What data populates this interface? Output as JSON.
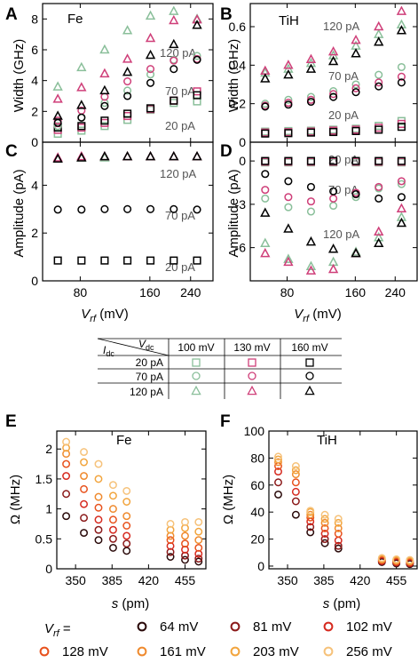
{
  "colors": {
    "c20": "#000000",
    "c70": "#000000",
    "c120": "#000000",
    "v100": "#8abf9a",
    "v130": "#cf3f79",
    "v160": "#000000",
    "axis": "#000000",
    "gray_label": "#555555",
    "vrf": [
      "#2a0a0a",
      "#8b1a1a",
      "#d62a1f",
      "#e8521d",
      "#ef8a2e",
      "#f2a53e",
      "#f6c27a"
    ]
  },
  "labels": {
    "panelA": "A",
    "panelB": "B",
    "panelC": "C",
    "panelD": "D",
    "panelE": "E",
    "panelF": "F",
    "fe": "Fe",
    "tih": "TiH",
    "width_ylabel": "Width (GHz)",
    "amp_ylabel": "Amplitude (pA)",
    "omega_ylabel": "Ω (MHz)",
    "vrf_xlabel_main": "V",
    "vrf_xlabel_sub": "rf",
    "vrf_xlabel_unit": " (mV)",
    "s_xlabel_main": "s",
    "s_xlabel_unit": " (pm)",
    "lbl_120pA": "120 pA",
    "lbl_70pA": "70 pA",
    "lbl_20pA": "20 pA",
    "vrf_legend_main": "V",
    "vrf_legend_sub": "rf",
    "vrf_legend_eq": " ="
  },
  "legend_table": {
    "idc_main": "I",
    "idc_sub": "dc",
    "vdc_main": "V",
    "vdc_sub": "dc",
    "columns": [
      "100 mV",
      "130 mV",
      "160 mV"
    ],
    "rows": [
      "20 pA",
      "70 pA",
      "120 pA"
    ]
  },
  "vrf_legend": [
    "64 mV",
    "81 mV",
    "102 mV",
    "128 mV",
    "161 mV",
    "203 mV",
    "256 mV"
  ],
  "chart_data": [
    {
      "panel": "A",
      "type": "scatter",
      "title": "Fe",
      "ylabel": "Width (GHz)",
      "xlabel": "Vrf (mV)",
      "x_scale": "log",
      "xticks": [
        80,
        160,
        240
      ],
      "ylim": [
        0,
        9
      ],
      "yticks": [
        0,
        2,
        4,
        6,
        8
      ],
      "x": [
        64,
        81,
        102,
        128,
        161,
        203,
        256
      ],
      "series": [
        {
          "name": "20 pA, 100 mV",
          "marker": "square",
          "color": "#8abf9a",
          "values": [
            0.55,
            0.75,
            1.05,
            1.45,
            2.1,
            2.55,
            2.65
          ]
        },
        {
          "name": "20 pA, 130 mV",
          "marker": "square",
          "color": "#cf3f79",
          "values": [
            0.8,
            0.95,
            1.25,
            1.7,
            2.15,
            2.7,
            3.3
          ]
        },
        {
          "name": "20 pA, 160 mV",
          "marker": "square",
          "color": "#000000",
          "values": [
            0.95,
            1.05,
            1.4,
            1.85,
            2.2,
            2.7,
            3.05
          ]
        },
        {
          "name": "70 pA, 100 mV",
          "marker": "circle",
          "color": "#8abf9a",
          "values": [
            1.05,
            1.6,
            2.55,
            3.35,
            4.4,
            5.35,
            5.6
          ]
        },
        {
          "name": "70 pA, 130 mV",
          "marker": "circle",
          "color": "#cf3f79",
          "values": [
            1.4,
            2.05,
            2.95,
            3.95,
            4.75,
            5.3,
            5.4
          ]
        },
        {
          "name": "70 pA, 160 mV",
          "marker": "circle",
          "color": "#000000",
          "values": [
            1.25,
            1.6,
            2.35,
            3.0,
            3.85,
            4.75,
            5.35
          ]
        },
        {
          "name": "120 pA, 100 mV",
          "marker": "triangle",
          "color": "#8abf9a",
          "values": [
            3.6,
            4.85,
            6.0,
            7.25,
            8.2,
            8.5,
            8.0
          ]
        },
        {
          "name": "120 pA, 130 mV",
          "marker": "triangle",
          "color": "#cf3f79",
          "values": [
            2.8,
            3.55,
            4.45,
            5.4,
            6.75,
            7.9,
            7.95
          ]
        },
        {
          "name": "120 pA, 160 mV",
          "marker": "triangle",
          "color": "#000000",
          "values": [
            1.7,
            2.4,
            3.35,
            4.55,
            5.65,
            6.35,
            7.6
          ]
        }
      ]
    },
    {
      "panel": "B",
      "type": "scatter",
      "title": "TiH",
      "ylabel": "Width (GHz)",
      "xlabel": "Vrf (mV)",
      "x_scale": "log",
      "xticks": [
        80,
        160,
        240
      ],
      "ylim": [
        0,
        0.72
      ],
      "yticks": [
        0.0,
        0.2,
        0.4,
        0.6
      ],
      "x": [
        64,
        81,
        102,
        128,
        161,
        203,
        256
      ],
      "series": [
        {
          "name": "20 pA, 100 mV",
          "marker": "square",
          "color": "#8abf9a",
          "values": [
            0.055,
            0.058,
            0.06,
            0.065,
            0.07,
            0.085,
            0.11
          ]
        },
        {
          "name": "20 pA, 130 mV",
          "marker": "square",
          "color": "#cf3f79",
          "values": [
            0.05,
            0.052,
            0.055,
            0.06,
            0.065,
            0.075,
            0.095
          ]
        },
        {
          "name": "20 pA, 160 mV",
          "marker": "square",
          "color": "#000000",
          "values": [
            0.045,
            0.047,
            0.05,
            0.053,
            0.058,
            0.065,
            0.08
          ]
        },
        {
          "name": "70 pA, 100 mV",
          "marker": "circle",
          "color": "#8abf9a",
          "values": [
            0.2,
            0.22,
            0.235,
            0.265,
            0.3,
            0.35,
            0.39
          ]
        },
        {
          "name": "70 pA, 130 mV",
          "marker": "circle",
          "color": "#cf3f79",
          "values": [
            0.19,
            0.205,
            0.22,
            0.25,
            0.28,
            0.31,
            0.34
          ]
        },
        {
          "name": "70 pA, 160 mV",
          "marker": "circle",
          "color": "#000000",
          "values": [
            0.185,
            0.195,
            0.21,
            0.235,
            0.26,
            0.29,
            0.31
          ]
        },
        {
          "name": "120 pA, 100 mV",
          "marker": "triangle",
          "color": "#8abf9a",
          "values": [
            0.36,
            0.38,
            0.41,
            0.45,
            0.5,
            0.56,
            0.61
          ]
        },
        {
          "name": "120 pA, 130 mV",
          "marker": "triangle",
          "color": "#cf3f79",
          "values": [
            0.37,
            0.4,
            0.43,
            0.47,
            0.53,
            0.6,
            0.68
          ]
        },
        {
          "name": "120 pA, 160 mV",
          "marker": "triangle",
          "color": "#000000",
          "values": [
            0.33,
            0.35,
            0.38,
            0.42,
            0.46,
            0.52,
            0.58
          ]
        }
      ]
    },
    {
      "panel": "C",
      "type": "scatter",
      "ylabel": "Amplitude (pA)",
      "xlabel": "Vrf (mV)",
      "x_scale": "log",
      "xticks": [
        80,
        160,
        240
      ],
      "ylim": [
        0,
        5.8
      ],
      "yticks": [
        0,
        2,
        4
      ],
      "x": [
        64,
        81,
        102,
        128,
        161,
        203,
        256
      ],
      "series": [
        {
          "name": "20 pA, 160 mV",
          "marker": "square",
          "color": "#000000",
          "values": [
            0.85,
            0.85,
            0.85,
            0.85,
            0.85,
            0.85,
            0.85
          ]
        },
        {
          "name": "70 pA, 160 mV",
          "marker": "circle",
          "color": "#000000",
          "values": [
            2.98,
            2.98,
            3.0,
            3.0,
            3.0,
            3.0,
            2.98
          ]
        },
        {
          "name": "120 pA, 100 mV",
          "marker": "triangle",
          "color": "#8abf9a",
          "values": [
            5.1,
            5.15,
            5.15,
            5.2,
            5.2,
            5.2,
            5.2
          ]
        },
        {
          "name": "120 pA, 130 mV",
          "marker": "triangle",
          "color": "#cf3f79",
          "values": [
            5.15,
            5.2,
            5.2,
            5.2,
            5.2,
            5.2,
            5.2
          ]
        },
        {
          "name": "120 pA, 160 mV",
          "marker": "triangle",
          "color": "#000000",
          "values": [
            5.1,
            5.15,
            5.2,
            5.2,
            5.2,
            5.2,
            5.2
          ]
        }
      ]
    },
    {
      "panel": "D",
      "type": "scatter",
      "ylabel": "Amplitude (pA)",
      "xlabel": "Vrf (mV)",
      "x_scale": "log",
      "xticks": [
        80,
        160,
        240
      ],
      "ylim": [
        -8.3,
        1.3
      ],
      "yticks": [
        0,
        -3,
        -6
      ],
      "x": [
        64,
        81,
        102,
        128,
        161,
        203,
        256
      ],
      "series": [
        {
          "name": "20 pA, 100 mV",
          "marker": "square",
          "color": "#8abf9a",
          "values": [
            -0.1,
            -0.1,
            -0.1,
            -0.1,
            -0.1,
            -0.1,
            -0.1
          ]
        },
        {
          "name": "20 pA, 130 mV",
          "marker": "square",
          "color": "#cf3f79",
          "values": [
            -0.05,
            -0.05,
            -0.05,
            -0.05,
            -0.05,
            -0.05,
            -0.05
          ]
        },
        {
          "name": "20 pA, 160 mV",
          "marker": "square",
          "color": "#000000",
          "values": [
            0.0,
            0.0,
            0.0,
            0.0,
            0.0,
            0.0,
            0.0
          ]
        },
        {
          "name": "70 pA, 100 mV",
          "marker": "circle",
          "color": "#8abf9a",
          "values": [
            -2.6,
            -3.2,
            -3.5,
            -3.1,
            -2.5,
            -1.9,
            -1.6
          ]
        },
        {
          "name": "70 pA, 130 mV",
          "marker": "circle",
          "color": "#cf3f79",
          "values": [
            -2.0,
            -2.5,
            -2.8,
            -2.6,
            -2.2,
            -1.8,
            -1.4
          ]
        },
        {
          "name": "70 pA, 160 mV",
          "marker": "circle",
          "color": "#000000",
          "values": [
            -0.9,
            -1.4,
            -1.8,
            -2.1,
            -2.3,
            -2.6,
            -2.5
          ]
        },
        {
          "name": "120 pA, 100 mV",
          "marker": "triangle",
          "color": "#8abf9a",
          "values": [
            -5.7,
            -6.8,
            -7.3,
            -7.0,
            -6.3,
            -5.3,
            -3.9
          ]
        },
        {
          "name": "120 pA, 130 mV",
          "marker": "triangle",
          "color": "#cf3f79",
          "values": [
            -6.4,
            -7.0,
            -7.6,
            -7.5,
            -6.4,
            -4.9,
            -3.3
          ]
        },
        {
          "name": "120 pA, 160 mV",
          "marker": "triangle",
          "color": "#000000",
          "values": [
            -3.6,
            -4.7,
            -5.6,
            -6.1,
            -6.4,
            -5.7,
            -4.3
          ]
        }
      ]
    },
    {
      "panel": "E",
      "type": "scatter",
      "title": "Fe",
      "ylabel": "Ω (MHz)",
      "xlabel": "s (pm)",
      "xlim": [
        332,
        475
      ],
      "xticks": [
        350,
        385,
        420,
        455
      ],
      "ylim": [
        0,
        2.3
      ],
      "yticks": [
        0.0,
        0.5,
        1.0,
        1.5,
        2.0
      ],
      "x": [
        341,
        358,
        372,
        386,
        399,
        441,
        455,
        468
      ],
      "series": [
        {
          "name": "64 mV",
          "color": "#2a0a0a",
          "values": [
            0.88,
            0.6,
            0.48,
            0.35,
            0.3,
            0.2,
            0.15,
            0.12
          ]
        },
        {
          "name": "81 mV",
          "color": "#8b1a1a",
          "values": [
            1.25,
            0.85,
            0.65,
            0.5,
            0.42,
            0.28,
            0.22,
            0.17
          ]
        },
        {
          "name": "102 mV",
          "color": "#d62a1f",
          "values": [
            1.55,
            1.08,
            0.82,
            0.65,
            0.55,
            0.38,
            0.32,
            0.25
          ]
        },
        {
          "name": "128 mV",
          "color": "#e8521d",
          "values": [
            1.75,
            1.33,
            1.02,
            0.82,
            0.72,
            0.48,
            0.42,
            0.35
          ]
        },
        {
          "name": "161 mV",
          "color": "#ef8a2e",
          "values": [
            1.92,
            1.55,
            1.2,
            1.0,
            0.88,
            0.55,
            0.55,
            0.48
          ]
        },
        {
          "name": "203 mV",
          "color": "#f2a53e",
          "values": [
            2.02,
            1.78,
            1.5,
            1.22,
            1.12,
            0.65,
            0.68,
            0.62
          ]
        },
        {
          "name": "256 mV",
          "color": "#f6c27a",
          "values": [
            2.12,
            1.95,
            1.75,
            1.4,
            1.3,
            0.75,
            0.78,
            0.78
          ]
        }
      ]
    },
    {
      "panel": "F",
      "type": "scatter",
      "title": "TiH",
      "ylabel": "Ω (MHz)",
      "xlabel": "s (pm)",
      "xlim": [
        332,
        475
      ],
      "xticks": [
        350,
        385,
        420,
        455
      ],
      "ylim": [
        -2,
        100
      ],
      "yticks": [
        0,
        20,
        40,
        60,
        80,
        100
      ],
      "x": [
        341,
        358,
        372,
        386,
        399,
        441,
        455,
        468
      ],
      "series": [
        {
          "name": "64 mV",
          "color": "#2a0a0a",
          "values": [
            53,
            38,
            25,
            17,
            13,
            3,
            2,
            1.5
          ]
        },
        {
          "name": "81 mV",
          "color": "#8b1a1a",
          "values": [
            62,
            48,
            29,
            20,
            15,
            3.5,
            2.5,
            2
          ]
        },
        {
          "name": "102 mV",
          "color": "#d62a1f",
          "values": [
            70,
            55,
            33,
            24,
            19,
            4,
            3,
            2.5
          ]
        },
        {
          "name": "128 mV",
          "color": "#e8521d",
          "values": [
            74,
            62,
            36,
            28,
            24,
            4.5,
            3.5,
            3
          ]
        },
        {
          "name": "161 mV",
          "color": "#ef8a2e",
          "values": [
            77,
            68,
            38,
            32,
            28,
            5,
            4,
            3.5
          ]
        },
        {
          "name": "203 mV",
          "color": "#f2a53e",
          "values": [
            79,
            71,
            40,
            35,
            32,
            5.5,
            4.5,
            4
          ]
        },
        {
          "name": "256 mV",
          "color": "#f6c27a",
          "values": [
            81,
            74,
            41,
            38,
            35,
            6,
            5,
            4.5
          ]
        }
      ]
    }
  ]
}
